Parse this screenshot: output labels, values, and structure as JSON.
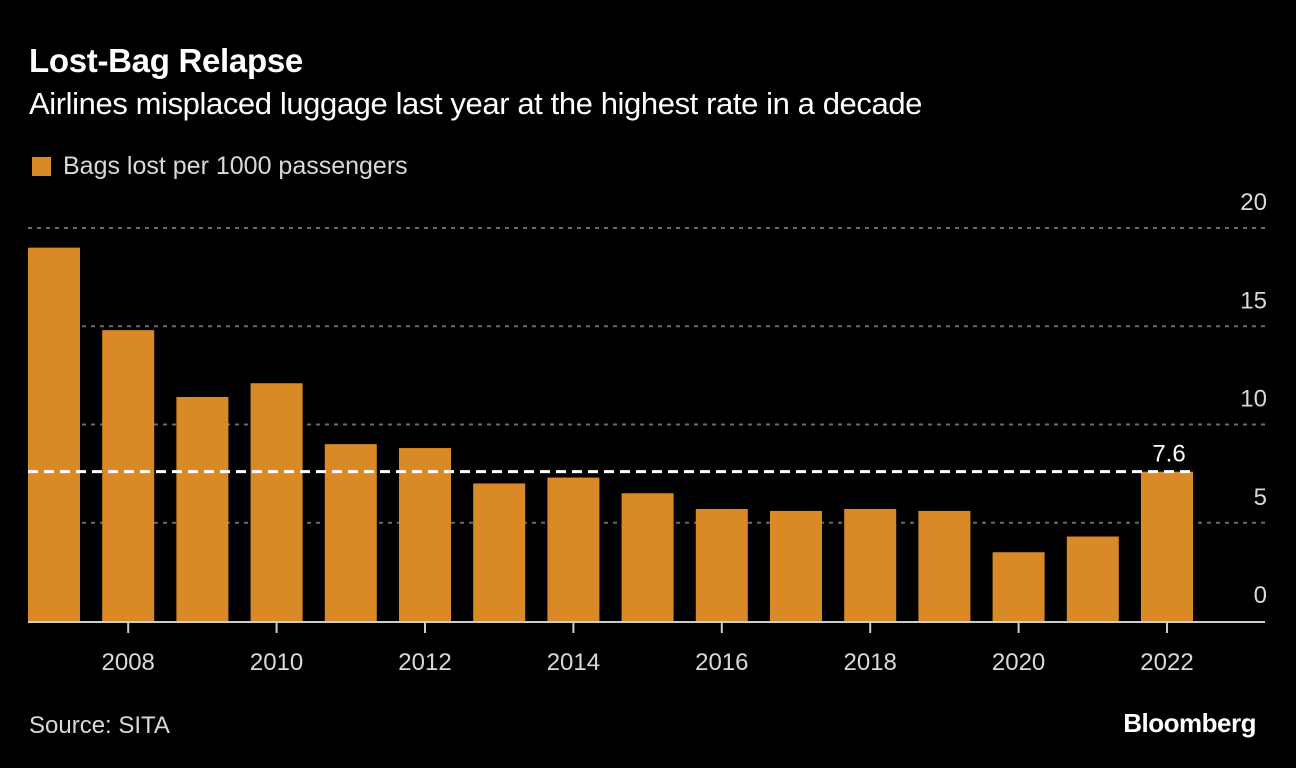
{
  "header": {
    "title": "Lost-Bag Relapse",
    "subtitle": "Airlines misplaced luggage last year at the highest rate in a decade"
  },
  "footer": {
    "source": "Source: SITA",
    "brand": "Bloomberg"
  },
  "colors": {
    "bar": "#d98a26",
    "background": "#000000",
    "grid": "#6b6b6b",
    "reference_line": "#ffffff",
    "axis": "#cccccc"
  },
  "chart_data": {
    "type": "bar",
    "title": "Lost-Bag Relapse",
    "subtitle": "Airlines misplaced luggage last year at the highest rate in a decade",
    "xlabel": "",
    "ylabel": "",
    "legend": {
      "entries": [
        "Bags lost per 1000 passengers"
      ],
      "placement": "top-left"
    },
    "categories": [
      "2007",
      "2008",
      "2009",
      "2010",
      "2011",
      "2012",
      "2013",
      "2014",
      "2015",
      "2016",
      "2017",
      "2018",
      "2019",
      "2020",
      "2021",
      "2022"
    ],
    "series": [
      {
        "name": "Bags lost per 1000 passengers",
        "values": [
          19.0,
          14.8,
          11.4,
          12.1,
          9.0,
          8.8,
          7.0,
          7.3,
          6.5,
          5.7,
          5.6,
          5.7,
          5.6,
          3.5,
          4.3,
          7.6
        ]
      }
    ],
    "x_tick_labels": [
      "2008",
      "2010",
      "2012",
      "2014",
      "2016",
      "2018",
      "2020",
      "2022"
    ],
    "y_ticks": [
      0,
      5,
      10,
      15,
      20
    ],
    "ylim": [
      0,
      20
    ],
    "y_axis_side": "right",
    "grid": true,
    "reference_line": {
      "value": 7.6,
      "label": "7.6",
      "style": "dashed"
    }
  }
}
